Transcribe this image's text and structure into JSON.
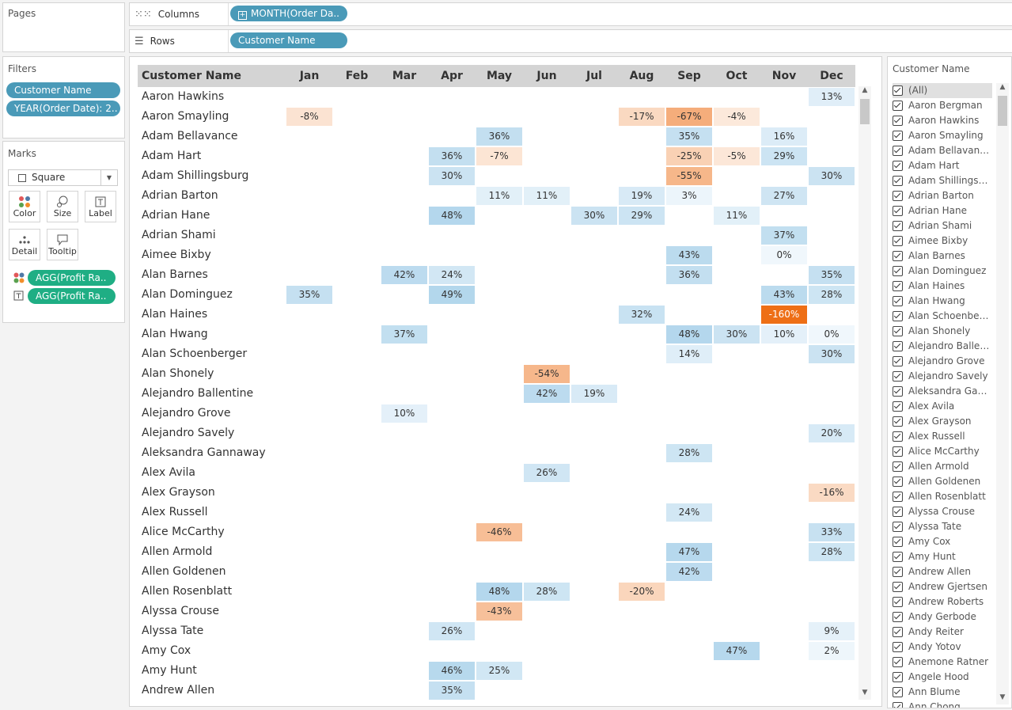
{
  "pages": {
    "title": "Pages"
  },
  "shelves": {
    "columns": {
      "label": "Columns",
      "icon": "columns-icon",
      "pill": "MONTH(Order Da.."
    },
    "rows": {
      "label": "Rows",
      "icon": "rows-icon",
      "pill": "Customer Name"
    }
  },
  "filters": {
    "title": "Filters",
    "pills": [
      "Customer Name",
      "YEAR(Order Date): 2.."
    ]
  },
  "marks": {
    "title": "Marks",
    "type": "Square",
    "buttons": [
      "Color",
      "Size",
      "Label",
      "Detail",
      "Tooltip"
    ],
    "fields": [
      {
        "icon": "color-dots-icon",
        "label": "AGG(Profit Ra.."
      },
      {
        "icon": "text-label-icon",
        "label": "AGG(Profit Ra.."
      }
    ]
  },
  "table": {
    "header": "Customer Name",
    "months": [
      "Jan",
      "Feb",
      "Mar",
      "Apr",
      "May",
      "Jun",
      "Jul",
      "Aug",
      "Sep",
      "Oct",
      "Nov",
      "Dec"
    ],
    "rows": [
      {
        "name": "Aaron Hawkins",
        "cells": {
          "Dec": 13
        }
      },
      {
        "name": "Aaron Smayling",
        "cells": {
          "Jan": -8,
          "Aug": -17,
          "Sep": -67,
          "Oct": -4
        }
      },
      {
        "name": "Adam Bellavance",
        "cells": {
          "May": 36,
          "Sep": 35,
          "Nov": 16
        }
      },
      {
        "name": "Adam Hart",
        "cells": {
          "Apr": 36,
          "May": -7,
          "Sep": -25,
          "Oct": -5,
          "Nov": 29
        }
      },
      {
        "name": "Adam Shillingsburg",
        "cells": {
          "Apr": 30,
          "Sep": -55,
          "Dec": 30
        }
      },
      {
        "name": "Adrian Barton",
        "cells": {
          "May": 11,
          "Jun": 11,
          "Aug": 19,
          "Sep": 3,
          "Nov": 27
        }
      },
      {
        "name": "Adrian Hane",
        "cells": {
          "Apr": 48,
          "Jul": 30,
          "Aug": 29,
          "Oct": 11
        }
      },
      {
        "name": "Adrian Shami",
        "cells": {
          "Nov": 37
        }
      },
      {
        "name": "Aimee Bixby",
        "cells": {
          "Sep": 43,
          "Nov": 0
        }
      },
      {
        "name": "Alan Barnes",
        "cells": {
          "Mar": 42,
          "Apr": 24,
          "Sep": 36,
          "Dec": 35
        }
      },
      {
        "name": "Alan Dominguez",
        "cells": {
          "Jan": 35,
          "Apr": 49,
          "Nov": 43,
          "Dec": 28
        }
      },
      {
        "name": "Alan Haines",
        "cells": {
          "Aug": 32,
          "Nov": -160
        }
      },
      {
        "name": "Alan Hwang",
        "cells": {
          "Mar": 37,
          "Sep": 48,
          "Oct": 30,
          "Nov": 10,
          "Dec": 0
        }
      },
      {
        "name": "Alan Schoenberger",
        "cells": {
          "Sep": 14,
          "Dec": 30
        }
      },
      {
        "name": "Alan Shonely",
        "cells": {
          "Jun": -54
        }
      },
      {
        "name": "Alejandro Ballentine",
        "cells": {
          "Jun": 42,
          "Jul": 19
        }
      },
      {
        "name": "Alejandro Grove",
        "cells": {
          "Mar": 10
        }
      },
      {
        "name": "Alejandro Savely",
        "cells": {
          "Dec": 20
        }
      },
      {
        "name": "Aleksandra Gannaway",
        "cells": {
          "Sep": 28
        }
      },
      {
        "name": "Alex Avila",
        "cells": {
          "Jun": 26
        }
      },
      {
        "name": "Alex Grayson",
        "cells": {
          "Dec": -16
        }
      },
      {
        "name": "Alex Russell",
        "cells": {
          "Sep": 24
        }
      },
      {
        "name": "Alice McCarthy",
        "cells": {
          "May": -46,
          "Dec": 33
        }
      },
      {
        "name": "Allen Armold",
        "cells": {
          "Sep": 47,
          "Dec": 28
        }
      },
      {
        "name": "Allen Goldenen",
        "cells": {
          "Sep": 42
        }
      },
      {
        "name": "Allen Rosenblatt",
        "cells": {
          "May": 48,
          "Jun": 28,
          "Aug": -20
        }
      },
      {
        "name": "Alyssa Crouse",
        "cells": {
          "May": -43
        }
      },
      {
        "name": "Alyssa Tate",
        "cells": {
          "Apr": 26,
          "Dec": 9
        }
      },
      {
        "name": "Amy Cox",
        "cells": {
          "Oct": 47,
          "Dec": 2
        }
      },
      {
        "name": "Amy Hunt",
        "cells": {
          "Apr": 46,
          "May": 25
        }
      },
      {
        "name": "Andrew Allen",
        "cells": {
          "Apr": 35
        }
      }
    ]
  },
  "customer_filter": {
    "title": "Customer Name",
    "items": [
      "(All)",
      "Aaron Bergman",
      "Aaron Hawkins",
      "Aaron Smayling",
      "Adam Bellavance",
      "Adam Hart",
      "Adam Shillingsb...",
      "Adrian Barton",
      "Adrian Hane",
      "Adrian Shami",
      "Aimee Bixby",
      "Alan Barnes",
      "Alan Dominguez",
      "Alan Haines",
      "Alan Hwang",
      "Alan Schoenberg...",
      "Alan Shonely",
      "Alejandro Ballen...",
      "Alejandro Grove",
      "Alejandro Savely",
      "Aleksandra Gan...",
      "Alex Avila",
      "Alex Grayson",
      "Alex Russell",
      "Alice McCarthy",
      "Allen Armold",
      "Allen Goldenen",
      "Allen Rosenblatt",
      "Alyssa Crouse",
      "Alyssa Tate",
      "Amy Cox",
      "Amy Hunt",
      "Andrew Allen",
      "Andrew Gjertsen",
      "Andrew Roberts",
      "Andy Gerbode",
      "Andy Reiter",
      "Andy Yotov",
      "Anemone Ratner",
      "Angele Hood",
      "Ann Blume",
      "Ann Chong"
    ]
  },
  "colors": {
    "positive_max": "#a7cfe9",
    "negative_max": "#ee6f16",
    "header_bg": "#d4d4d4",
    "pill_blue": "#4a9ab8",
    "pill_green": "#1fae84"
  }
}
